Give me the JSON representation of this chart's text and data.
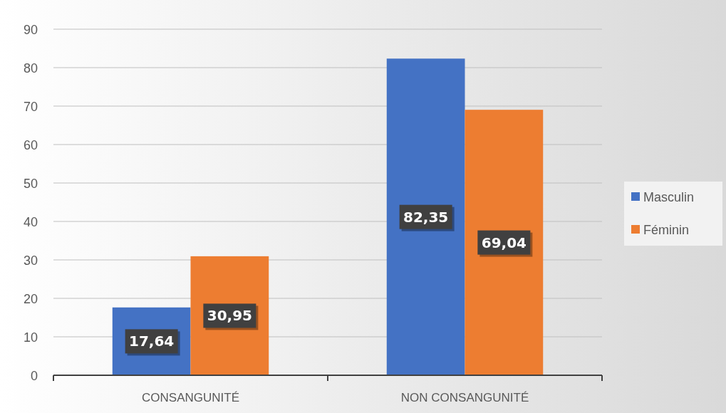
{
  "chart_data": {
    "type": "bar",
    "categories": [
      "CONSANGUNITÉ",
      "NON CONSANGUNITÉ"
    ],
    "series": [
      {
        "name": "Masculin",
        "color": "#4472c4",
        "values": [
          17.64,
          82.35
        ],
        "value_labels": [
          "17,64",
          "82,35"
        ]
      },
      {
        "name": "Féminin",
        "color": "#ed7d31",
        "values": [
          30.95,
          69.04
        ],
        "value_labels": [
          "30,95",
          "69,04"
        ]
      }
    ],
    "ylim": [
      0,
      90
    ],
    "yticks": [
      0,
      10,
      20,
      30,
      40,
      50,
      60,
      70,
      80,
      90
    ],
    "grid": "y",
    "legend": "right"
  }
}
